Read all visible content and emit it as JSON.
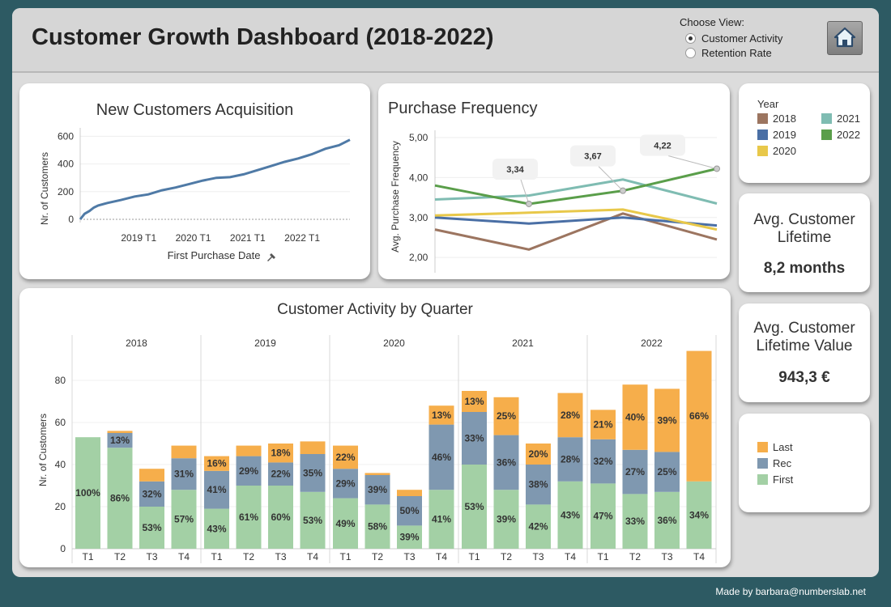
{
  "header": {
    "title": "Customer Growth Dashboard (2018-2022)",
    "choose_view_label": "Choose View:",
    "options": [
      "Customer Activity",
      "Retention Rate"
    ],
    "selected_option": "Customer Activity",
    "home_icon": "home-icon"
  },
  "colors": {
    "background": "#2d5a63",
    "line": "#4f7aa6",
    "first": "#a3d0a5",
    "rec": "#7f98b0",
    "last": "#f6ae4b",
    "y2018": "#9c7560",
    "y2019": "#4a6fa5",
    "y2020": "#e8c84a",
    "y2021": "#7fbcb2",
    "y2022": "#5a9e4a"
  },
  "chart_data": [
    {
      "type": "line",
      "title": "New Customers Acquisition",
      "xlabel": "First Purchase Date",
      "ylabel": "Nr. of Customers",
      "xticks": [
        "2019 T1",
        "2020 T1",
        "2021 T1",
        "2022 T1"
      ],
      "yticks": [
        0,
        200,
        400,
        600
      ],
      "ylim": [
        0,
        620
      ],
      "x": [
        2018.0,
        2018.08,
        2018.17,
        2018.25,
        2018.33,
        2018.5,
        2018.75,
        2019.0,
        2019.25,
        2019.5,
        2019.75,
        2020.0,
        2020.25,
        2020.5,
        2020.75,
        2021.0,
        2021.25,
        2021.5,
        2021.75,
        2022.0,
        2022.25,
        2022.5,
        2022.75,
        2022.95
      ],
      "y": [
        0,
        40,
        60,
        85,
        100,
        118,
        140,
        165,
        180,
        210,
        230,
        255,
        280,
        300,
        305,
        325,
        355,
        385,
        415,
        440,
        470,
        510,
        535,
        575
      ],
      "xlim": [
        2018.0,
        2022.95
      ]
    },
    {
      "type": "line",
      "title": "Purchase Frequency",
      "ylabel": "Avg. Purchase Frequency",
      "yticks": [
        "5,00",
        "4,00",
        "3,00",
        "2,00"
      ],
      "ylim": [
        1.7,
        5.1
      ],
      "x": [
        0,
        1,
        2,
        3
      ],
      "legend_title": "Year",
      "series": [
        {
          "name": "2018",
          "values": [
            2.7,
            2.2,
            3.1,
            2.45
          ]
        },
        {
          "name": "2019",
          "values": [
            3.0,
            2.85,
            3.0,
            2.8
          ]
        },
        {
          "name": "2020",
          "values": [
            3.05,
            3.12,
            3.2,
            2.7
          ]
        },
        {
          "name": "2021",
          "values": [
            3.45,
            3.55,
            3.95,
            3.35
          ]
        },
        {
          "name": "2022",
          "values": [
            3.8,
            3.34,
            3.67,
            4.22
          ]
        }
      ],
      "annotations": [
        {
          "x": 1,
          "value": 3.34,
          "label": "3,34"
        },
        {
          "x": 2,
          "value": 3.67,
          "label": "3,67"
        },
        {
          "x": 3,
          "value": 4.22,
          "label": "4,22"
        }
      ]
    },
    {
      "type": "bar",
      "title": "Customer Activity by Quarter",
      "ylabel": "Nr. of Customers",
      "yticks": [
        0,
        20,
        40,
        60,
        80
      ],
      "ylim": [
        0,
        95
      ],
      "years": [
        "2018",
        "2019",
        "2020",
        "2021",
        "2022"
      ],
      "quarters": [
        "T1",
        "T2",
        "T3",
        "T4"
      ],
      "legend": [
        "Last",
        "Rec",
        "First"
      ],
      "bars": [
        {
          "first": 53,
          "rec": 0,
          "last": 0,
          "labels": [
            "100%",
            "",
            ""
          ]
        },
        {
          "first": 48,
          "rec": 7,
          "last": 1,
          "labels": [
            "86%",
            "13%",
            ""
          ]
        },
        {
          "first": 20,
          "rec": 12,
          "last": 6,
          "labels": [
            "53%",
            "32%",
            ""
          ]
        },
        {
          "first": 28,
          "rec": 15,
          "last": 6,
          "labels": [
            "57%",
            "31%",
            ""
          ]
        },
        {
          "first": 19,
          "rec": 18,
          "last": 7,
          "labels": [
            "43%",
            "41%",
            "16%"
          ]
        },
        {
          "first": 30,
          "rec": 14,
          "last": 5,
          "labels": [
            "61%",
            "29%",
            ""
          ]
        },
        {
          "first": 30,
          "rec": 11,
          "last": 9,
          "labels": [
            "60%",
            "22%",
            "18%"
          ]
        },
        {
          "first": 27,
          "rec": 18,
          "last": 6,
          "labels": [
            "53%",
            "35%",
            ""
          ]
        },
        {
          "first": 24,
          "rec": 14,
          "last": 11,
          "labels": [
            "49%",
            "29%",
            "22%"
          ]
        },
        {
          "first": 21,
          "rec": 14,
          "last": 1,
          "labels": [
            "58%",
            "39%",
            ""
          ]
        },
        {
          "first": 11,
          "rec": 14,
          "last": 3,
          "labels": [
            "39%",
            "50%",
            ""
          ]
        },
        {
          "first": 28,
          "rec": 31,
          "last": 9,
          "labels": [
            "41%",
            "46%",
            "13%"
          ]
        },
        {
          "first": 40,
          "rec": 25,
          "last": 10,
          "labels": [
            "53%",
            "33%",
            "13%"
          ]
        },
        {
          "first": 28,
          "rec": 26,
          "last": 18,
          "labels": [
            "39%",
            "36%",
            "25%"
          ]
        },
        {
          "first": 21,
          "rec": 19,
          "last": 10,
          "labels": [
            "42%",
            "38%",
            "20%"
          ]
        },
        {
          "first": 32,
          "rec": 21,
          "last": 21,
          "labels": [
            "43%",
            "28%",
            "28%"
          ]
        },
        {
          "first": 31,
          "rec": 21,
          "last": 14,
          "labels": [
            "47%",
            "32%",
            "21%"
          ]
        },
        {
          "first": 26,
          "rec": 21,
          "last": 31,
          "labels": [
            "33%",
            "27%",
            "40%"
          ]
        },
        {
          "first": 27,
          "rec": 19,
          "last": 30,
          "labels": [
            "36%",
            "25%",
            "39%"
          ]
        },
        {
          "first": 32,
          "rec": 0,
          "last": 62,
          "labels": [
            "34%",
            "",
            "66%"
          ]
        }
      ]
    }
  ],
  "kpis": {
    "lifetime_title": "Avg. Customer Lifetime",
    "lifetime_value": "8,2 months",
    "ltv_title": "Avg. Customer Lifetime Value",
    "ltv_value": "943,3 €"
  },
  "icons": {
    "pin": "pin-icon"
  },
  "footer": "Made by barbara@numberslab.net"
}
